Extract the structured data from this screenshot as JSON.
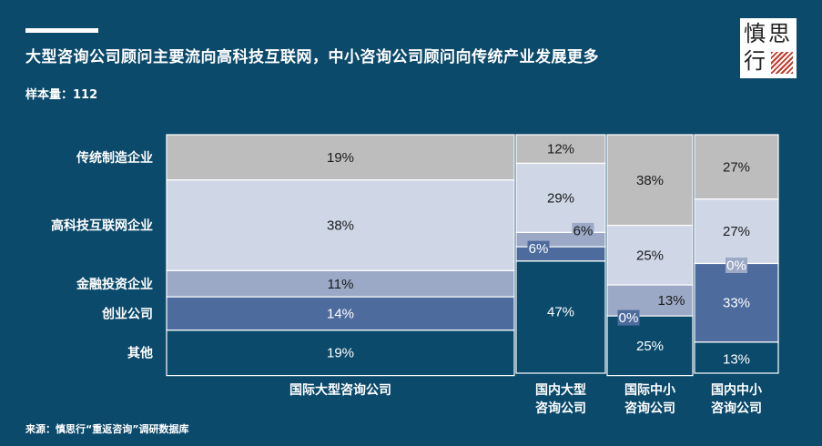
{
  "header": {
    "title": "大型咨询公司顾问主要流向高科技互联网，中小咨询公司顾问向传统产业发展更多",
    "sample": "样本量：112"
  },
  "logo": {
    "chars": [
      "慎",
      "思",
      "行"
    ]
  },
  "source": "来源：慎思行“重返咨询”调研数据库",
  "colors": {
    "background": "#0b4a6b",
    "传统制造企业": "#bdbdbd",
    "高科技互联网企业": "#cfd6e6",
    "金融投资企业": "#9ba9c6",
    "创业公司": "#4e6b9e",
    "其他": "#0b4a6b"
  },
  "chart_data": {
    "type": "bar",
    "subtype": "marimekko",
    "categories": [
      "国际大型咨询公司",
      "国内大型咨询公司",
      "国际中小咨询公司",
      "国内中小咨询公司"
    ],
    "category_labels": [
      [
        "国际大型咨询公司"
      ],
      [
        "国内大型",
        "咨询公司"
      ],
      [
        "国际中小",
        "咨询公司"
      ],
      [
        "国内中小",
        "咨询公司"
      ]
    ],
    "row_labels": [
      "传统制造企业",
      "高科技互联网企业",
      "金融投资企业",
      "创业公司",
      "其他"
    ],
    "series": [
      {
        "name": "传统制造企业",
        "values": [
          19,
          12,
          38,
          27
        ]
      },
      {
        "name": "高科技互联网企业",
        "values": [
          38,
          29,
          25,
          27
        ]
      },
      {
        "name": "金融投资企业",
        "values": [
          11,
          6,
          13,
          0
        ]
      },
      {
        "name": "创业公司",
        "values": [
          14,
          6,
          0,
          33
        ]
      },
      {
        "name": "其他",
        "values": [
          19,
          47,
          25,
          13
        ]
      }
    ],
    "value_labels": [
      [
        "19%",
        "38%",
        "11%",
        "14%",
        "19%"
      ],
      [
        "12%",
        "29%",
        "6%",
        "6%",
        "47%"
      ],
      [
        "38%",
        "25%",
        "13%",
        "0%",
        "25%"
      ],
      [
        "27%",
        "27%",
        "0%",
        "33%",
        "13%"
      ]
    ],
    "ylim": [
      0,
      100
    ]
  }
}
